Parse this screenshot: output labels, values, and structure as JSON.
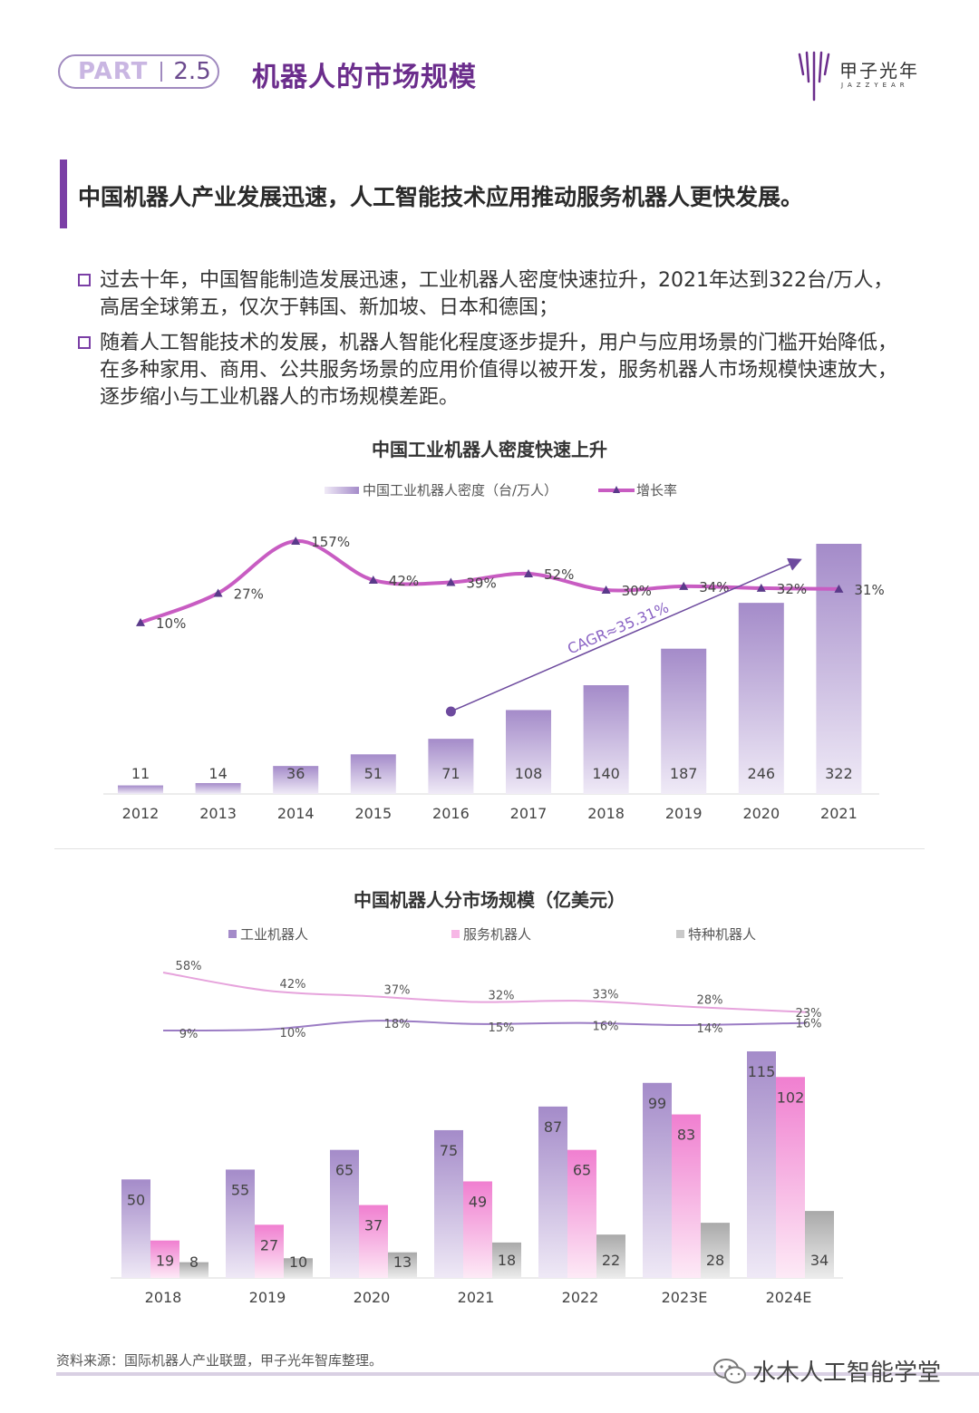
{
  "header": {
    "part_label": "PART",
    "part_number": "2.5",
    "section_title": "机器人的市场规模",
    "brand_name": "甲子光年",
    "brand_sub": "JAZZYEAR"
  },
  "headline": "中国机器人产业发展迅速，人工智能技术应用推动服务机器人更快发展。",
  "bullets": [
    {
      "line1": "过去十年，中国智能制造发展迅速，工业机器人密度快速拉升，2021年达到322台/万人，",
      "line2": "高居全球第五，仅次于韩国、新加坡、日本和德国；",
      "line3": ""
    },
    {
      "line1": "随着人工智能技术的发展，机器人智能化程度逐步提升，用户与应用场景的门槛开始降低，",
      "line2": "在多种家用、商用、公共服务场景的应用价值得以被开发，服务机器人市场规模快速放大，",
      "line3": "逐步缩小与工业机器人的市场规模差距。"
    }
  ],
  "chart_data": [
    {
      "type": "bar",
      "title": "中国工业机器人密度快速上升",
      "categories": [
        "2012",
        "2013",
        "2014",
        "2015",
        "2016",
        "2017",
        "2018",
        "2019",
        "2020",
        "2021"
      ],
      "series": [
        {
          "name": "中国工业机器人密度（台/万人）",
          "type": "bar",
          "values": [
            11,
            14,
            36,
            51,
            71,
            108,
            140,
            187,
            246,
            322
          ]
        },
        {
          "name": "增长率",
          "type": "line",
          "values": [
            "10%",
            "27%",
            "157%",
            "42%",
            "39%",
            "52%",
            "30%",
            "34%",
            "32%",
            "31%"
          ]
        }
      ],
      "annotation": "CAGR≈35.31%",
      "colors": {
        "bar": "#a48bc9",
        "line": "#c85cc2"
      }
    },
    {
      "type": "bar",
      "title": "中国机器人分市场规模（亿美元）",
      "categories": [
        "2018",
        "2019",
        "2020",
        "2021",
        "2022",
        "2023E",
        "2024E"
      ],
      "series": [
        {
          "name": "工业机器人",
          "values": [
            50,
            55,
            65,
            75,
            87,
            99,
            115
          ]
        },
        {
          "name": "服务机器人",
          "values": [
            19,
            27,
            37,
            49,
            65,
            83,
            102
          ]
        },
        {
          "name": "特种机器人",
          "values": [
            8,
            10,
            13,
            18,
            22,
            28,
            34
          ]
        }
      ],
      "lines": [
        {
          "values": [
            "58%",
            "42%",
            "37%",
            "32%",
            "33%",
            "28%",
            "23%"
          ]
        },
        {
          "values": [
            "9%",
            "10%",
            "18%",
            "15%",
            "16%",
            "14%",
            "16%"
          ]
        }
      ],
      "colors": {
        "industrial": "#a48bc9",
        "service": "#f07fd0",
        "special": "#a9a9a9",
        "line_upper": "#e6a3dc",
        "line_lower": "#9b7cc4"
      }
    }
  ],
  "footer": {
    "source": "资料来源：国际机器人产业联盟，甲子光年智库整理。",
    "wechat": "水木人工智能学堂"
  }
}
